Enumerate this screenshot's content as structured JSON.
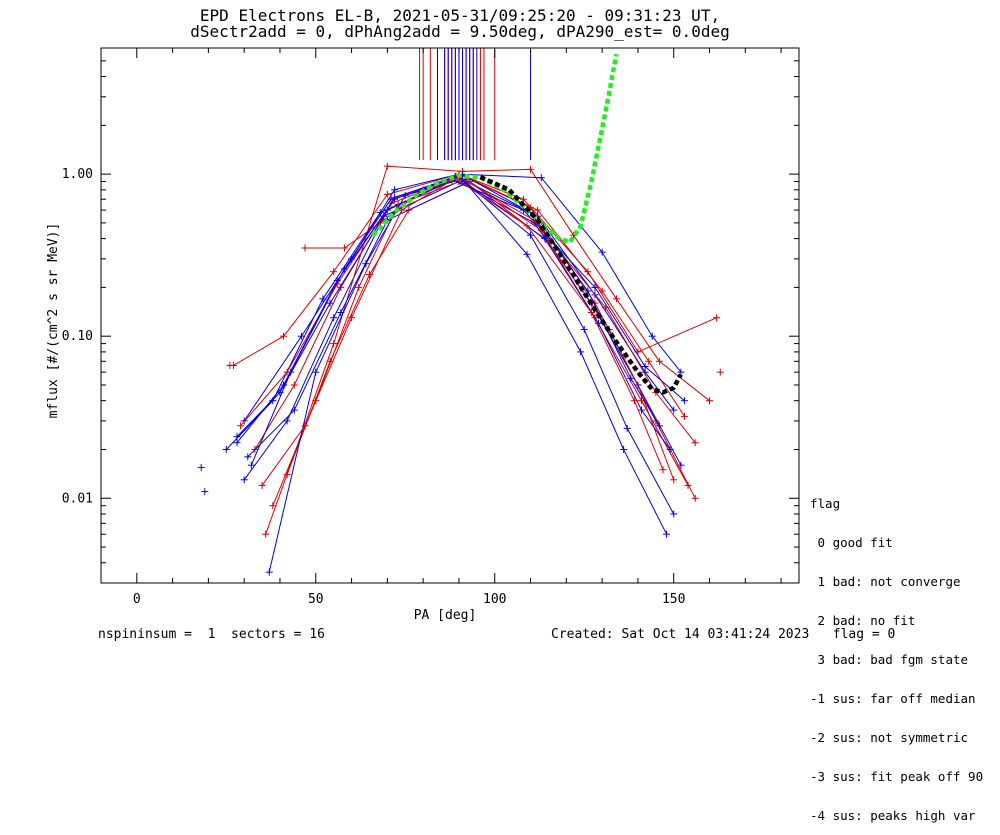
{
  "header": {
    "title_line1": "EPD Electrons EL-B, 2021-05-31/09:25:20 - 09:31:23 UT,",
    "title_line2": "dSectr2add = 0, dPhAng2add = 9.50deg, dPA290_est=   0.0deg"
  },
  "legend": {
    "title": "flag",
    "items": [
      " 0 good fit",
      " 1 bad: not converge",
      " 2 bad: no fit",
      " 3 bad: bad fgm state",
      "-1 sus: far off median",
      "-2 sus: not symmetric",
      "-3 sus: fit peak off 90",
      "-4 sus: peaks high var"
    ]
  },
  "footer": {
    "left": "nspininsum =  1  sectors = 16",
    "right": "Created: Sat Oct 14 03:41:24 2023   flag = 0"
  },
  "colors": {
    "series_red": "#dd0000",
    "series_blue": "#0000ee",
    "fit_green": "#22ee22",
    "fit_black": "#000000"
  },
  "chart_data": {
    "type": "line",
    "xlabel": "PA [deg]",
    "ylabel": "mflux [#/(cm^2 s sr MeV)]",
    "xlim": [
      -10,
      185
    ],
    "ylim": [
      0.003,
      6.0
    ],
    "yscale": "log",
    "xticks": [
      0,
      50,
      100,
      150
    ],
    "yticks": [
      0.01,
      0.1,
      1.0
    ],
    "ytick_labels": [
      "0.01",
      "0.10",
      "1.00"
    ],
    "grid": false,
    "series": [
      {
        "color": "red",
        "x": [
          27,
          41,
          55,
          70,
          90,
          110,
          128,
          140,
          150
        ],
        "y": [
          0.066,
          0.1,
          0.25,
          0.75,
          1.0,
          0.62,
          0.16,
          0.05,
          0.013
        ]
      },
      {
        "color": "blue",
        "x": [
          30,
          42,
          55,
          70,
          90,
          110,
          125,
          137,
          150
        ],
        "y": [
          0.013,
          0.03,
          0.13,
          0.6,
          0.95,
          0.42,
          0.11,
          0.027,
          0.008
        ]
      },
      {
        "color": "red",
        "x": [
          33,
          44,
          57,
          72,
          91,
          112,
          130,
          143,
          153
        ],
        "y": [
          0.02,
          0.05,
          0.2,
          0.72,
          0.98,
          0.6,
          0.19,
          0.07,
          0.032
        ]
      },
      {
        "color": "blue",
        "x": [
          28,
          40,
          54,
          69,
          90,
          111,
          127,
          140,
          152
        ],
        "y": [
          0.024,
          0.045,
          0.16,
          0.55,
          0.9,
          0.5,
          0.16,
          0.05,
          0.016
        ]
      },
      {
        "color": "red",
        "x": [
          38,
          50,
          62,
          73,
          92,
          113,
          128,
          141,
          154
        ],
        "y": [
          0.009,
          0.04,
          0.2,
          0.65,
          0.93,
          0.45,
          0.13,
          0.04,
          0.012
        ]
      },
      {
        "color": "blue",
        "x": [
          32,
          43,
          58,
          71,
          89,
          112,
          128,
          142,
          150
        ],
        "y": [
          0.016,
          0.06,
          0.26,
          0.7,
          0.97,
          0.55,
          0.18,
          0.06,
          0.035
        ]
      },
      {
        "color": "red",
        "x": [
          36,
          55,
          70,
          91,
          110,
          122,
          134,
          146,
          160
        ],
        "y": [
          0.006,
          0.09,
          1.12,
          1.04,
          1.07,
          0.42,
          0.17,
          0.07,
          0.04
        ]
      },
      {
        "color": "blue",
        "x": [
          30,
          46,
          60,
          72,
          90,
          113,
          130,
          144,
          152
        ],
        "y": [
          0.03,
          0.1,
          0.3,
          0.8,
          1.0,
          0.95,
          0.33,
          0.1,
          0.06
        ]
      },
      {
        "color": "red",
        "x": [
          42,
          54,
          65,
          76,
          93,
          115,
          132,
          145,
          156
        ],
        "y": [
          0.014,
          0.07,
          0.24,
          0.6,
          0.9,
          0.38,
          0.11,
          0.03,
          0.01
        ]
      },
      {
        "color": "blue",
        "x": [
          37,
          50,
          64,
          75,
          91,
          109,
          124,
          136,
          148
        ],
        "y": [
          0.0035,
          0.06,
          0.28,
          0.74,
          0.93,
          0.32,
          0.08,
          0.02,
          0.006
        ]
      },
      {
        "color": "red",
        "x": [
          47,
          58,
          68,
          80,
          90,
          108,
          126,
          140,
          162
        ],
        "y": [
          0.35,
          0.35,
          0.5,
          0.8,
          1.0,
          0.7,
          0.25,
          0.08,
          0.13
        ]
      },
      {
        "color": "blue",
        "x": [
          25,
          38,
          52,
          68,
          88,
          108,
          128,
          142,
          153
        ],
        "y": [
          0.02,
          0.04,
          0.17,
          0.58,
          0.92,
          0.6,
          0.2,
          0.065,
          0.04
        ]
      },
      {
        "color": "red",
        "x": [
          29,
          42,
          56,
          71,
          90,
          111,
          131,
          145,
          156
        ],
        "y": [
          0.028,
          0.06,
          0.21,
          0.66,
          0.96,
          0.52,
          0.15,
          0.045,
          0.022
        ]
      },
      {
        "color": "blue",
        "x": [
          31,
          44,
          57,
          70,
          92,
          114,
          129,
          141,
          149
        ],
        "y": [
          0.018,
          0.035,
          0.14,
          0.52,
          0.88,
          0.4,
          0.12,
          0.035,
          0.02
        ]
      },
      {
        "color": "red",
        "x": [
          35,
          47,
          60,
          74,
          89,
          109,
          127,
          139,
          147
        ],
        "y": [
          0.012,
          0.028,
          0.13,
          0.6,
          0.94,
          0.48,
          0.14,
          0.04,
          0.015
        ]
      },
      {
        "color": "blue",
        "x": [
          28,
          41,
          56,
          72,
          91,
          110,
          126,
          138,
          146
        ],
        "y": [
          0.022,
          0.05,
          0.22,
          0.7,
          0.99,
          0.58,
          0.19,
          0.055,
          0.028
        ]
      }
    ],
    "isolated_points": [
      {
        "color": "blue",
        "x": 18,
        "y": 0.0155
      },
      {
        "color": "blue",
        "x": 19,
        "y": 0.011
      },
      {
        "color": "red",
        "x": 26,
        "y": 0.066
      },
      {
        "color": "red",
        "x": 163,
        "y": 0.06
      }
    ],
    "upper_bars": {
      "red_x": [
        79,
        80,
        82,
        84,
        86,
        87,
        88,
        89,
        90,
        91,
        92,
        93,
        94,
        96,
        97,
        100
      ],
      "blue_x": [
        84,
        86,
        87,
        88,
        89,
        90,
        91,
        92,
        93,
        94,
        95,
        110
      ],
      "y_from": 1.22
    },
    "fits": [
      {
        "name": "",
        "color": "green",
        "dash": true,
        "x": [
          66,
          72,
          78,
          84,
          90,
          96,
          102,
          108,
          114,
          118,
          121,
          124,
          127,
          130,
          132,
          134
        ],
        "y": [
          0.42,
          0.58,
          0.74,
          0.88,
          0.98,
          0.95,
          0.82,
          0.63,
          0.48,
          0.4,
          0.38,
          0.48,
          0.9,
          1.9,
          3.2,
          5.5
        ]
      },
      {
        "name": "",
        "color": "black",
        "dash": true,
        "x": [
          96,
          104,
          112,
          120,
          128,
          134,
          140,
          144,
          147,
          150,
          152
        ],
        "y": [
          0.96,
          0.8,
          0.52,
          0.28,
          0.145,
          0.092,
          0.06,
          0.047,
          0.045,
          0.048,
          0.058
        ]
      }
    ]
  }
}
